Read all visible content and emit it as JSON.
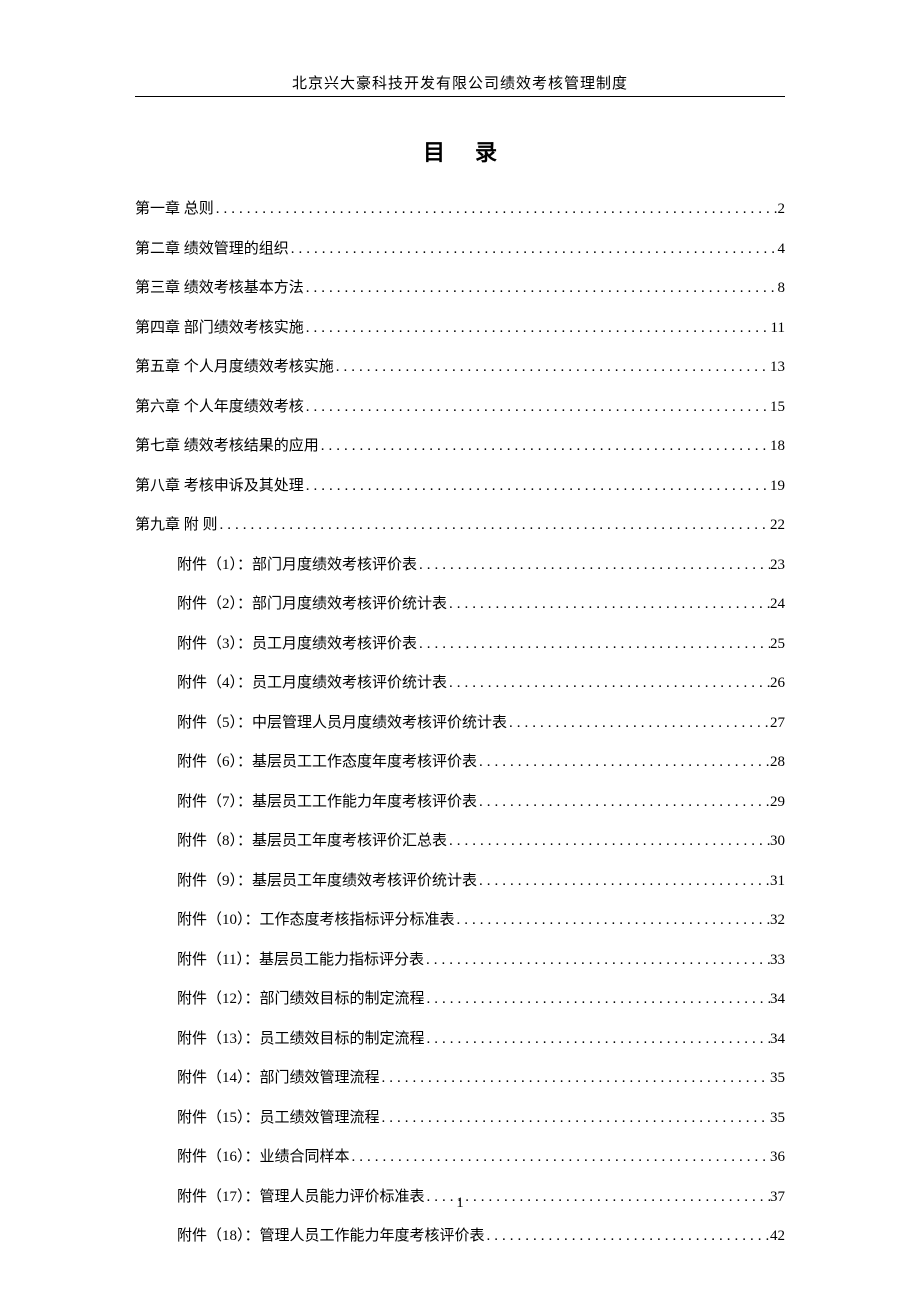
{
  "header_title": "北京兴大豪科技开发有限公司绩效考核管理制度",
  "toc_title": "目录",
  "page_number": "1",
  "entries": [
    {
      "level": 1,
      "label": "第一章  总则",
      "page": "2"
    },
    {
      "level": 1,
      "label": "第二章  绩效管理的组织",
      "page": "4"
    },
    {
      "level": 1,
      "label": "第三章  绩效考核基本方法",
      "page": "8"
    },
    {
      "level": 1,
      "label": "第四章  部门绩效考核实施",
      "page": "11"
    },
    {
      "level": 1,
      "label": "第五章  个人月度绩效考核实施",
      "page": "13"
    },
    {
      "level": 1,
      "label": "第六章  个人年度绩效考核",
      "page": "15"
    },
    {
      "level": 1,
      "label": "第七章  绩效考核结果的应用",
      "page": "18"
    },
    {
      "level": 1,
      "label": "第八章  考核申诉及其处理",
      "page": "19"
    },
    {
      "level": 1,
      "label": "第九章  附    则",
      "page": "22"
    },
    {
      "level": 2,
      "label": "附件（1）：部门月度绩效考核评价表",
      "page": "23"
    },
    {
      "level": 2,
      "label": "附件（2）：部门月度绩效考核评价统计表",
      "page": "24"
    },
    {
      "level": 2,
      "label": "附件（3）：员工月度绩效考核评价表",
      "page": "25"
    },
    {
      "level": 2,
      "label": "附件（4）：员工月度绩效考核评价统计表",
      "page": "26"
    },
    {
      "level": 2,
      "label": "附件（5）：中层管理人员月度绩效考核评价统计表",
      "page": "27"
    },
    {
      "level": 2,
      "label": "附件（6）：基层员工工作态度年度考核评价表",
      "page": "28"
    },
    {
      "level": 2,
      "label": "附件（7）：基层员工工作能力年度考核评价表",
      "page": "29"
    },
    {
      "level": 2,
      "label": "附件（8）：基层员工年度考核评价汇总表",
      "page": "30"
    },
    {
      "level": 2,
      "label": "附件（9）：基层员工年度绩效考核评价统计表",
      "page": "31"
    },
    {
      "level": 2,
      "label": "附件（10）：工作态度考核指标评分标准表",
      "page": "32"
    },
    {
      "level": 2,
      "label": "附件（11）：基层员工能力指标评分表",
      "page": "33"
    },
    {
      "level": 2,
      "label": "附件（12）：部门绩效目标的制定流程",
      "page": "34"
    },
    {
      "level": 2,
      "label": "附件（13）：员工绩效目标的制定流程",
      "page": "34"
    },
    {
      "level": 2,
      "label": "附件（14）：部门绩效管理流程",
      "page": "35"
    },
    {
      "level": 2,
      "label": "附件（15）：员工绩效管理流程",
      "page": "35"
    },
    {
      "level": 2,
      "label": "附件（16）：业绩合同样本",
      "page": "36"
    },
    {
      "level": 2,
      "label": "附件（17）：管理人员能力评价标准表",
      "page": "37"
    },
    {
      "level": 2,
      "label": "附件（18）：管理人员工作能力年度考核评价表",
      "page": "42"
    }
  ]
}
